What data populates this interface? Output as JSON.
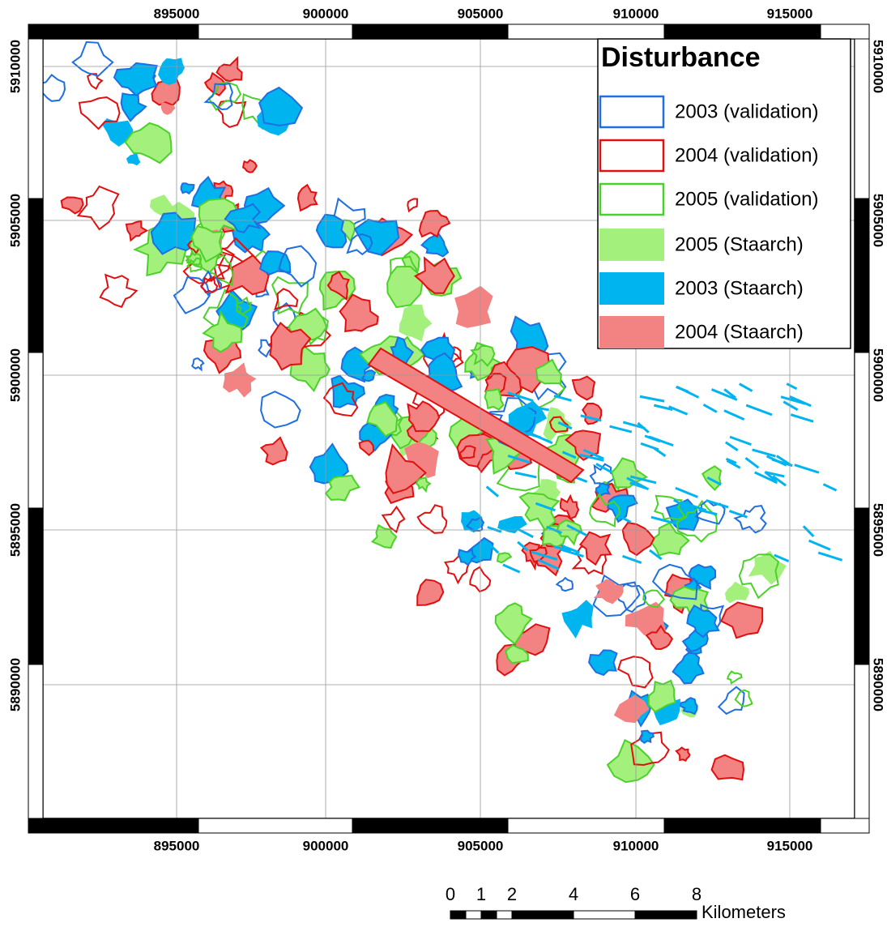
{
  "map": {
    "easting_labels": [
      "895000",
      "900000",
      "905000",
      "910000",
      "915000"
    ],
    "northing_labels": [
      "5910000",
      "5905000",
      "5900000",
      "5895000",
      "5890000"
    ],
    "legend": {
      "title": "Disturbance",
      "items": [
        {
          "label": "2003 (validation)",
          "style": "outline",
          "color": "#1f6fe0"
        },
        {
          "label": "2004 (validation)",
          "style": "outline",
          "color": "#e01010"
        },
        {
          "label": "2005 (validation)",
          "style": "outline",
          "color": "#4cd12a"
        },
        {
          "label": "2005 (Staarch)",
          "style": "fill",
          "color": "#a3f07c"
        },
        {
          "label": "2003 (Staarch)",
          "style": "fill",
          "color": "#00b4f0"
        },
        {
          "label": "2004 (Staarch)",
          "style": "fill",
          "color": "#f38383"
        }
      ]
    },
    "scale_bar": {
      "labels": [
        "0",
        "1",
        "2",
        "4",
        "6",
        "8"
      ],
      "unit": "Kilometers"
    }
  }
}
